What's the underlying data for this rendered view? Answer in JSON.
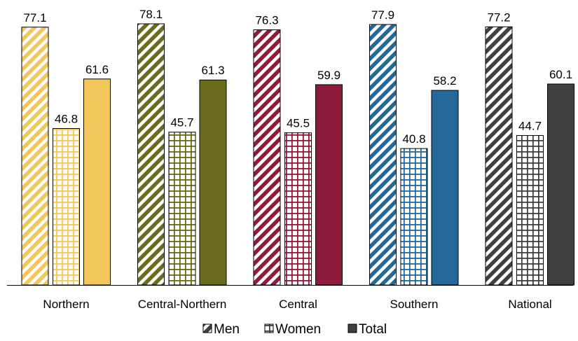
{
  "chart_data": {
    "type": "bar",
    "categories": [
      "Northern",
      "Central-Northern",
      "Central",
      "Southern",
      "National"
    ],
    "series": [
      {
        "name": "Men",
        "values": [
          77.1,
          78.1,
          76.3,
          77.9,
          77.2
        ],
        "pattern": "diagonal-stripes"
      },
      {
        "name": "Women",
        "values": [
          46.8,
          45.7,
          45.5,
          40.8,
          44.7
        ],
        "pattern": "grid"
      },
      {
        "name": "Total",
        "values": [
          61.6,
          61.3,
          59.9,
          58.2,
          60.1
        ],
        "pattern": "solid"
      }
    ],
    "category_colors": [
      "#F2C75C",
      "#6B6B1E",
      "#8E1B3B",
      "#246898",
      "#404040"
    ],
    "ylim": [
      0,
      78.1
    ],
    "grid": false,
    "legend_position": "bottom",
    "legend_icons": [
      "hatched-square-icon",
      "grid-square-icon",
      "solid-square-icon"
    ]
  }
}
